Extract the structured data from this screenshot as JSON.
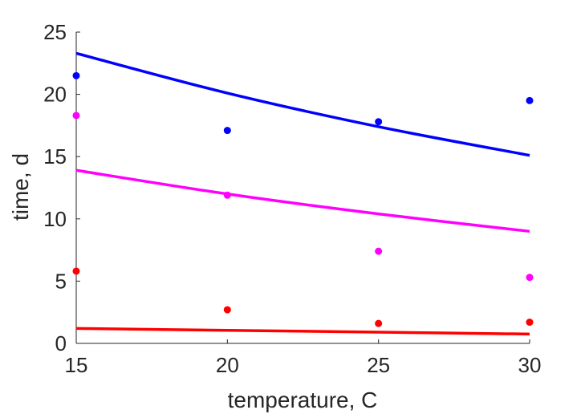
{
  "chart_data": {
    "type": "scatter",
    "title": "",
    "xlabel": "temperature, C",
    "ylabel": "time, d",
    "xlim": [
      15,
      30
    ],
    "ylim": [
      0,
      25
    ],
    "xticks": [
      "15",
      "20",
      "25",
      "30"
    ],
    "yticks": [
      "0",
      "5",
      "10",
      "15",
      "20",
      "25"
    ],
    "grid": false,
    "legend": "none",
    "series": [
      {
        "color": "#0000ff",
        "points": {
          "x": [
            15,
            20,
            25,
            30
          ],
          "y": [
            21.5,
            17.1,
            17.8,
            19.5
          ]
        },
        "fit": {
          "x": [
            15,
            20,
            25,
            30
          ],
          "y": [
            23.3,
            20.1,
            17.4,
            15.1
          ]
        }
      },
      {
        "color": "#ff00ff",
        "points": {
          "x": [
            15,
            20,
            25,
            30
          ],
          "y": [
            18.3,
            11.9,
            7.4,
            5.3
          ]
        },
        "fit": {
          "x": [
            15,
            20,
            25,
            30
          ],
          "y": [
            13.9,
            12.0,
            10.4,
            9.0
          ]
        }
      },
      {
        "color": "#ff0000",
        "points": {
          "x": [
            15,
            20,
            25,
            30
          ],
          "y": [
            5.8,
            2.7,
            1.6,
            1.7
          ]
        },
        "fit": {
          "x": [
            15,
            20,
            25,
            30
          ],
          "y": [
            1.2,
            1.05,
            0.9,
            0.75
          ]
        }
      }
    ]
  }
}
